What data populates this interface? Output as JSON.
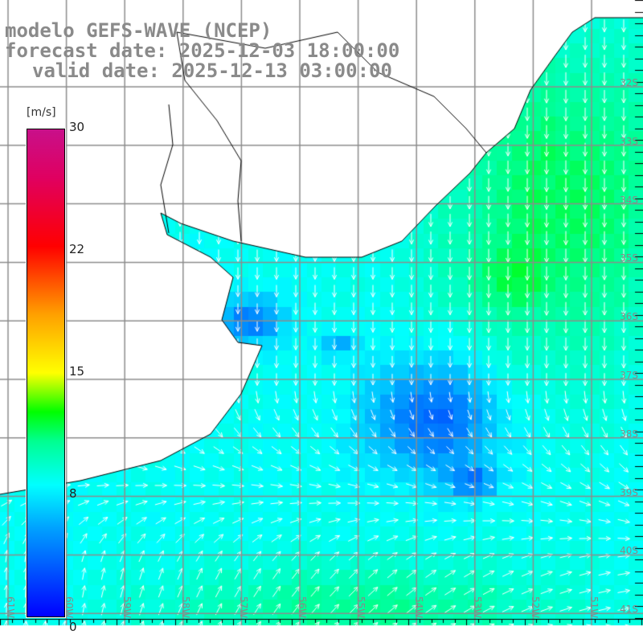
{
  "title": {
    "line1": "modelo GEFS-WAVE (NCEP)",
    "line2": "forecast date: 2025-12-03 18:00:00",
    "line3": "valid date: 2025-12-13 03:00:00"
  },
  "colorbar": {
    "unit": "[m/s]",
    "ticks": [
      "30",
      "22",
      "15",
      "8",
      "0"
    ]
  },
  "lat_labels": [
    "32S",
    "33S",
    "34S",
    "35S",
    "36S",
    "37S",
    "38S",
    "39S",
    "40S",
    "41S"
  ],
  "lon_labels": [
    "61W",
    "60W",
    "59W",
    "58W",
    "57W",
    "56W",
    "55W",
    "54W",
    "53W",
    "52W",
    "51W"
  ],
  "colors": {
    "land": "#ffffff",
    "grid": "#8c8c8c",
    "coast": "#000000",
    "arrows": "#ffffff"
  }
}
